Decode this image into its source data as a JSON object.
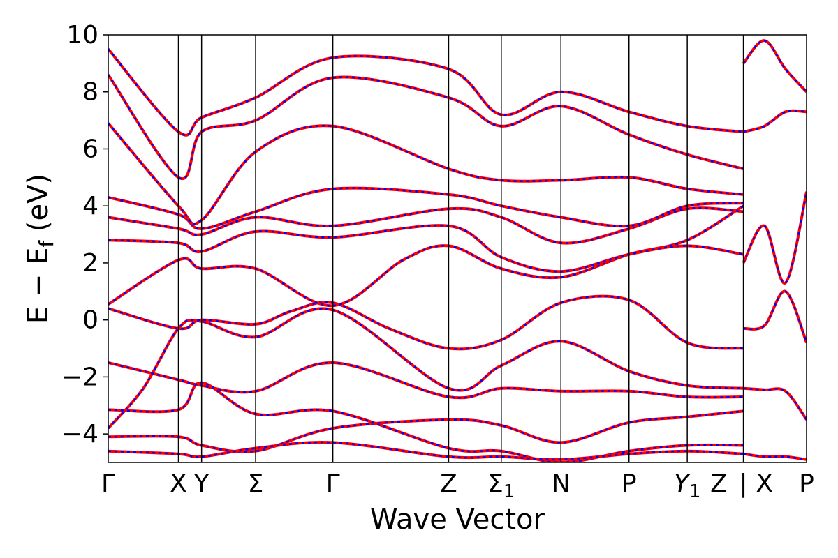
{
  "chart_data": {
    "type": "line",
    "title": "",
    "xlabel": "Wave Vector",
    "ylabel": "E − E_f (eV)",
    "ylabel_parts": {
      "main": "E − E",
      "sub": "f",
      "unit": " (eV)"
    },
    "ylim": [
      -5,
      10
    ],
    "yticks": [
      {
        "value": 10,
        "label": "10"
      },
      {
        "value": 8,
        "label": "8"
      },
      {
        "value": 6,
        "label": "6"
      },
      {
        "value": 4,
        "label": "4"
      },
      {
        "value": 2,
        "label": "2"
      },
      {
        "value": 0,
        "label": "0"
      },
      {
        "value": -2,
        "label": "−2"
      },
      {
        "value": -4,
        "label": "−4"
      }
    ],
    "kpoints": [
      {
        "label": "Γ",
        "sub": "",
        "pos": 0.0
      },
      {
        "label": "X",
        "sub": "",
        "pos": 1.0
      },
      {
        "label": "Y",
        "sub": "",
        "pos": 1.33
      },
      {
        "label": "Σ",
        "sub": "",
        "pos": 2.1
      },
      {
        "label": "Γ",
        "sub": "",
        "pos": 3.2
      },
      {
        "label": "Z",
        "sub": "",
        "pos": 4.85
      },
      {
        "label": "Σ",
        "sub": "1",
        "pos": 5.6
      },
      {
        "label": "N",
        "sub": "",
        "pos": 6.45
      },
      {
        "label": "P",
        "sub": "",
        "pos": 7.42
      },
      {
        "label": "Y",
        "sub": "1",
        "pos": 8.25,
        "italic": true
      },
      {
        "label": "Z",
        "sub": "",
        "pos": 8.7,
        "noline": true
      },
      {
        "label": "|",
        "sub": "",
        "pos": 9.05
      },
      {
        "label": "X",
        "sub": "",
        "pos": 9.35,
        "noline": true
      },
      {
        "label": "P",
        "sub": "",
        "pos": 9.95
      }
    ],
    "xlim": [
      0,
      9.95
    ],
    "series": [
      {
        "color": "#ff0000",
        "dash": "solid",
        "bands": [
          [
            [
              0,
              -3.8
            ],
            [
              0.5,
              -2.4
            ],
            [
              1.0,
              -0.3
            ],
            [
              1.33,
              -0.05
            ],
            [
              2.1,
              -0.6
            ],
            [
              3.2,
              0.35
            ],
            [
              4.85,
              -2.4
            ],
            [
              5.6,
              -1.6
            ],
            [
              6.45,
              -0.75
            ],
            [
              7.42,
              -1.8
            ],
            [
              8.25,
              -2.3
            ],
            [
              9.05,
              -2.4
            ]
          ],
          [
            [
              0,
              -1.5
            ],
            [
              1.0,
              -2.1
            ],
            [
              1.33,
              -2.3
            ],
            [
              2.1,
              -2.5
            ],
            [
              3.2,
              -1.5
            ],
            [
              4.85,
              -2.7
            ],
            [
              5.6,
              -2.4
            ],
            [
              6.45,
              -2.5
            ],
            [
              7.42,
              -2.5
            ],
            [
              8.25,
              -2.7
            ],
            [
              9.05,
              -2.7
            ]
          ],
          [
            [
              0,
              0.4
            ],
            [
              1.0,
              -0.3
            ],
            [
              1.33,
              0.0
            ],
            [
              2.1,
              -0.15
            ],
            [
              2.6,
              0.3
            ],
            [
              3.2,
              0.6
            ],
            [
              4.0,
              -0.3
            ],
            [
              4.85,
              -1.0
            ],
            [
              5.6,
              -0.7
            ],
            [
              6.45,
              0.6
            ],
            [
              7.42,
              0.7
            ],
            [
              8.25,
              -0.8
            ],
            [
              9.05,
              -1.0
            ]
          ],
          [
            [
              0,
              0.55
            ],
            [
              1.0,
              2.1
            ],
            [
              1.33,
              1.8
            ],
            [
              2.1,
              1.8
            ],
            [
              3.2,
              0.5
            ],
            [
              4.2,
              2.1
            ],
            [
              4.85,
              2.6
            ],
            [
              5.6,
              1.8
            ],
            [
              6.45,
              1.5
            ],
            [
              7.42,
              2.3
            ],
            [
              8.25,
              2.8
            ],
            [
              9.05,
              4.0
            ]
          ],
          [
            [
              0,
              2.8
            ],
            [
              1.0,
              2.7
            ],
            [
              1.33,
              2.4
            ],
            [
              2.1,
              3.1
            ],
            [
              3.2,
              2.9
            ],
            [
              4.85,
              3.3
            ],
            [
              5.6,
              2.2
            ],
            [
              6.45,
              1.7
            ],
            [
              7.42,
              2.3
            ],
            [
              8.25,
              2.6
            ],
            [
              9.05,
              2.3
            ]
          ],
          [
            [
              0,
              3.6
            ],
            [
              1.0,
              3.2
            ],
            [
              1.33,
              3.0
            ],
            [
              2.1,
              3.6
            ],
            [
              3.2,
              3.3
            ],
            [
              4.85,
              3.9
            ],
            [
              5.6,
              3.6
            ],
            [
              6.45,
              2.7
            ],
            [
              7.42,
              3.2
            ],
            [
              8.25,
              3.9
            ],
            [
              9.05,
              3.8
            ]
          ],
          [
            [
              0,
              4.3
            ],
            [
              1.0,
              3.7
            ],
            [
              1.33,
              3.2
            ],
            [
              2.1,
              3.8
            ],
            [
              3.2,
              4.6
            ],
            [
              4.85,
              4.4
            ],
            [
              5.6,
              4.0
            ],
            [
              6.45,
              3.6
            ],
            [
              7.42,
              3.3
            ],
            [
              8.25,
              4.0
            ],
            [
              9.05,
              4.1
            ]
          ],
          [
            [
              0,
              6.9
            ],
            [
              1.0,
              4.0
            ],
            [
              1.33,
              3.5
            ],
            [
              2.1,
              5.9
            ],
            [
              3.2,
              6.8
            ],
            [
              4.85,
              5.3
            ],
            [
              5.6,
              4.9
            ],
            [
              6.45,
              4.9
            ],
            [
              7.42,
              5.0
            ],
            [
              8.25,
              4.6
            ],
            [
              9.05,
              4.4
            ]
          ],
          [
            [
              0,
              8.6
            ],
            [
              1.0,
              5.0
            ],
            [
              1.33,
              6.6
            ],
            [
              2.1,
              7.0
            ],
            [
              3.2,
              8.5
            ],
            [
              4.85,
              7.8
            ],
            [
              5.6,
              6.8
            ],
            [
              6.45,
              7.5
            ],
            [
              7.42,
              6.5
            ],
            [
              8.25,
              5.8
            ],
            [
              9.05,
              5.3
            ]
          ],
          [
            [
              0,
              9.5
            ],
            [
              1.0,
              6.6
            ],
            [
              1.33,
              7.1
            ],
            [
              2.1,
              7.8
            ],
            [
              3.2,
              9.2
            ],
            [
              4.85,
              8.8
            ],
            [
              5.6,
              7.2
            ],
            [
              6.45,
              8.0
            ],
            [
              7.42,
              7.3
            ],
            [
              8.25,
              6.8
            ],
            [
              9.05,
              6.6
            ]
          ],
          [
            [
              0,
              -4.1
            ],
            [
              1.0,
              -4.1
            ],
            [
              1.33,
              -4.4
            ],
            [
              2.1,
              -4.6
            ],
            [
              3.2,
              -3.8
            ],
            [
              4.85,
              -3.5
            ],
            [
              5.6,
              -3.7
            ],
            [
              6.45,
              -4.3
            ],
            [
              7.42,
              -3.6
            ],
            [
              8.25,
              -3.4
            ],
            [
              9.05,
              -3.2
            ]
          ],
          [
            [
              0,
              -3.15
            ],
            [
              1.0,
              -3.15
            ],
            [
              1.33,
              -2.2
            ],
            [
              2.1,
              -3.3
            ],
            [
              3.2,
              -3.2
            ],
            [
              4.85,
              -4.5
            ],
            [
              5.6,
              -4.6
            ],
            [
              6.45,
              -5.0
            ],
            [
              7.42,
              -4.6
            ],
            [
              8.25,
              -4.4
            ],
            [
              9.05,
              -4.4
            ]
          ],
          [
            [
              0,
              -4.6
            ],
            [
              1.0,
              -4.7
            ],
            [
              1.33,
              -4.8
            ],
            [
              2.1,
              -4.5
            ],
            [
              3.2,
              -4.3
            ],
            [
              4.85,
              -4.8
            ],
            [
              5.6,
              -4.8
            ],
            [
              6.45,
              -4.9
            ],
            [
              7.42,
              -4.7
            ],
            [
              8.25,
              -4.6
            ],
            [
              9.05,
              -4.7
            ]
          ],
          [
            [
              9.05,
              -0.3
            ],
            [
              9.35,
              -0.2
            ],
            [
              9.65,
              1.0
            ],
            [
              9.95,
              -0.8
            ]
          ],
          [
            [
              9.05,
              2.0
            ],
            [
              9.35,
              3.3
            ],
            [
              9.65,
              1.3
            ],
            [
              9.95,
              4.5
            ]
          ],
          [
            [
              9.05,
              6.6
            ],
            [
              9.35,
              6.8
            ],
            [
              9.65,
              7.3
            ],
            [
              9.95,
              7.3
            ]
          ],
          [
            [
              9.05,
              -2.4
            ],
            [
              9.35,
              -2.45
            ],
            [
              9.65,
              -2.5
            ],
            [
              9.95,
              -3.5
            ]
          ],
          [
            [
              9.05,
              -4.7
            ],
            [
              9.35,
              -4.8
            ],
            [
              9.65,
              -4.8
            ],
            [
              9.95,
              -4.9
            ]
          ],
          [
            [
              9.05,
              9.0
            ],
            [
              9.35,
              9.8
            ],
            [
              9.65,
              8.8
            ],
            [
              9.95,
              8.0
            ]
          ]
        ]
      }
    ]
  }
}
